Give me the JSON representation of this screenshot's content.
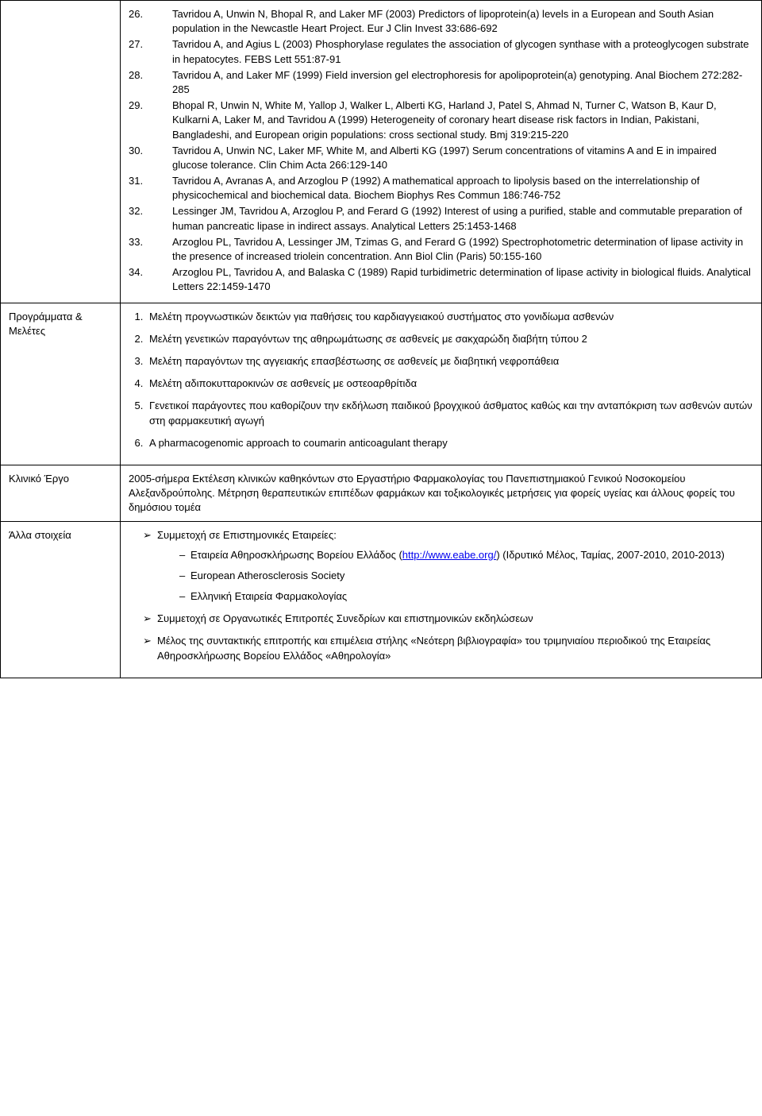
{
  "references": [
    {
      "n": "26.",
      "t": "Tavridou A, Unwin N, Bhopal R, and Laker MF (2003) Predictors of lipoprotein(a) levels in a European and South Asian population in the Newcastle Heart Project. Eur J Clin Invest 33:686-692"
    },
    {
      "n": "27.",
      "t": "Tavridou A, and Agius L (2003) Phosphorylase regulates the association of glycogen synthase with a proteoglycogen substrate in hepatocytes. FEBS Lett 551:87-91"
    },
    {
      "n": "28.",
      "t": "Tavridou A, and Laker MF (1999) Field inversion gel electrophoresis for apolipoprotein(a) genotyping. Anal Biochem 272:282-285"
    },
    {
      "n": "29.",
      "t": "Bhopal R, Unwin N, White M, Yallop J, Walker L, Alberti KG, Harland J, Patel S, Ahmad N, Turner C, Watson B, Kaur D, Kulkarni A, Laker M, and Tavridou A (1999) Heterogeneity of coronary heart disease risk factors in Indian, Pakistani, Bangladeshi, and European origin populations: cross sectional study. Bmj 319:215-220"
    },
    {
      "n": "30.",
      "t": "Tavridou A, Unwin NC, Laker MF, White M, and Alberti KG (1997) Serum concentrations of vitamins A and E in impaired glucose tolerance. Clin Chim Acta 266:129-140"
    },
    {
      "n": "31.",
      "t": "Tavridou A, Avranas A, and Arzoglou P (1992) A mathematical approach to lipolysis based on the interrelationship of physicochemical and biochemical data. Biochem Biophys Res Commun 186:746-752"
    },
    {
      "n": "32.",
      "t": "Lessinger JM, Tavridou A, Arzoglou P, and Ferard G (1992) Interest of using a purified, stable and commutable preparation of human pancreatic lipase in indirect assays. Analytical Letters 25:1453-1468"
    },
    {
      "n": "33.",
      "t": "Arzoglou PL, Tavridou A, Lessinger JM, Tzimas G, and Ferard G (1992) Spectrophotometric determination of lipase activity in the presence of increased triolein concentration. Ann Biol Clin (Paris) 50:155-160"
    },
    {
      "n": "34.",
      "t": "Arzoglou PL, Tavridou A, and Balaska C (1989) Rapid turbidimetric determination of lipase activity in biological fluids. Analytical Letters 22:1459-1470"
    }
  ],
  "rows": {
    "programs": {
      "label": "Προγράμματα & Μελέτες",
      "items": [
        "Μελέτη προγνωστικών δεικτών για παθήσεις του καρδιαγγειακού συστήματος στο γονιδίωμα ασθενών",
        "Μελέτη γενετικών παραγόντων της αθηρωμάτωσης σε ασθενείς με σακχαρώδη διαβήτη τύπου 2",
        "Μελέτη παραγόντων της αγγειακής επασβέστωσης σε ασθενείς με διαβητική νεφροπάθεια",
        "Μελέτη αδιποκυτταροκινών σε ασθενείς με οστεοαρθρίτιδα",
        "Γενετικοί παράγοντες που καθορίζουν την εκδήλωση παιδικού βρογχικού άσθματος καθώς και την ανταπόκριση των ασθενών αυτών στη φαρμακευτική αγωγή",
        "A pharmacogenomic approach to coumarin anticoagulant therapy"
      ]
    },
    "clinical": {
      "label": "Κλινικό Έργο",
      "text": "2005-σήμερα  Εκτέλεση κλινικών καθηκόντων στο Εργαστήριο Φαρμακολογίας του Πανεπιστημιακού Γενικού Νοσοκομείου Αλεξανδρούπολης. Μέτρηση θεραπευτικών επιπέδων φαρμάκων και τοξικολογικές μετρήσεις για φορείς υγείας και άλλους φορείς του δημόσιου τομέα"
    },
    "other": {
      "label": "Άλλα στοιχεία",
      "item1": "Συμμετοχή σε Επιστημονικές Εταιρείες:",
      "societies": {
        "s1_pre": "Εταιρεία Αθηροσκλήρωσης Βορείου Ελλάδος (",
        "s1_link": "http://www.eabe.org/",
        "s1_post": ") (Ιδρυτικό Μέλος, Ταμίας, 2007-2010, 2010-2013)",
        "s2": "European Atherosclerosis Society",
        "s3": "Ελληνική Εταιρεία Φαρμακολογίας"
      },
      "item2": "Συμμετοχή σε Οργανωτικές Επιτροπές Συνεδρίων και επιστημονικών εκδηλώσεων",
      "item3": "Μέλος της συντακτικής επιτροπής και επιμέλεια στήλης «Νεότερη βιβλιογραφία» του τριμηνιαίου περιοδικού της Εταιρείας Αθηροσκλήρωσης Βορείου Ελλάδος «Αθηρολογία»"
    }
  }
}
